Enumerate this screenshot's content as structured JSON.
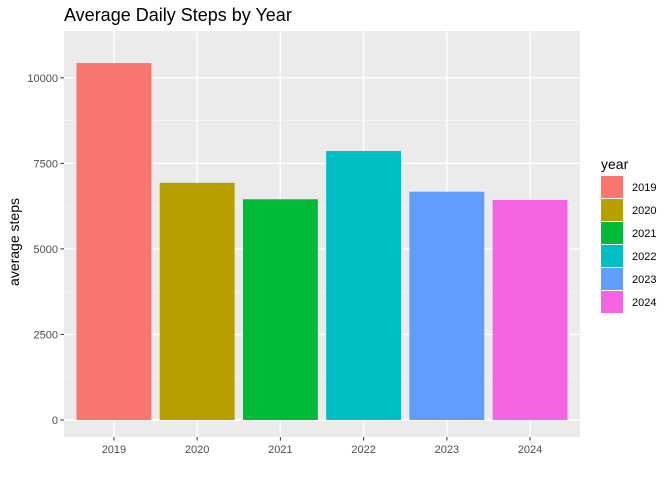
{
  "chart_data": {
    "type": "bar",
    "title": "Average Daily Steps by Year",
    "xlabel": "",
    "ylabel": "average steps",
    "categories": [
      "2019",
      "2020",
      "2021",
      "2022",
      "2023",
      "2024"
    ],
    "values": [
      10430,
      6930,
      6450,
      7860,
      6670,
      6430
    ],
    "colors": [
      "#F8766D",
      "#B79F00",
      "#00BA38",
      "#00BFC4",
      "#619CFF",
      "#F564E3"
    ],
    "ylim": [
      0,
      10870
    ],
    "yticks": [
      0,
      2500,
      5000,
      7500,
      10000
    ],
    "ytick_labels": [
      "0",
      "2500",
      "5000",
      "7500",
      "10000"
    ],
    "grid": true,
    "legend": {
      "title": "year",
      "position": "right",
      "entries": [
        "2019",
        "2020",
        "2021",
        "2022",
        "2023",
        "2024"
      ]
    }
  }
}
